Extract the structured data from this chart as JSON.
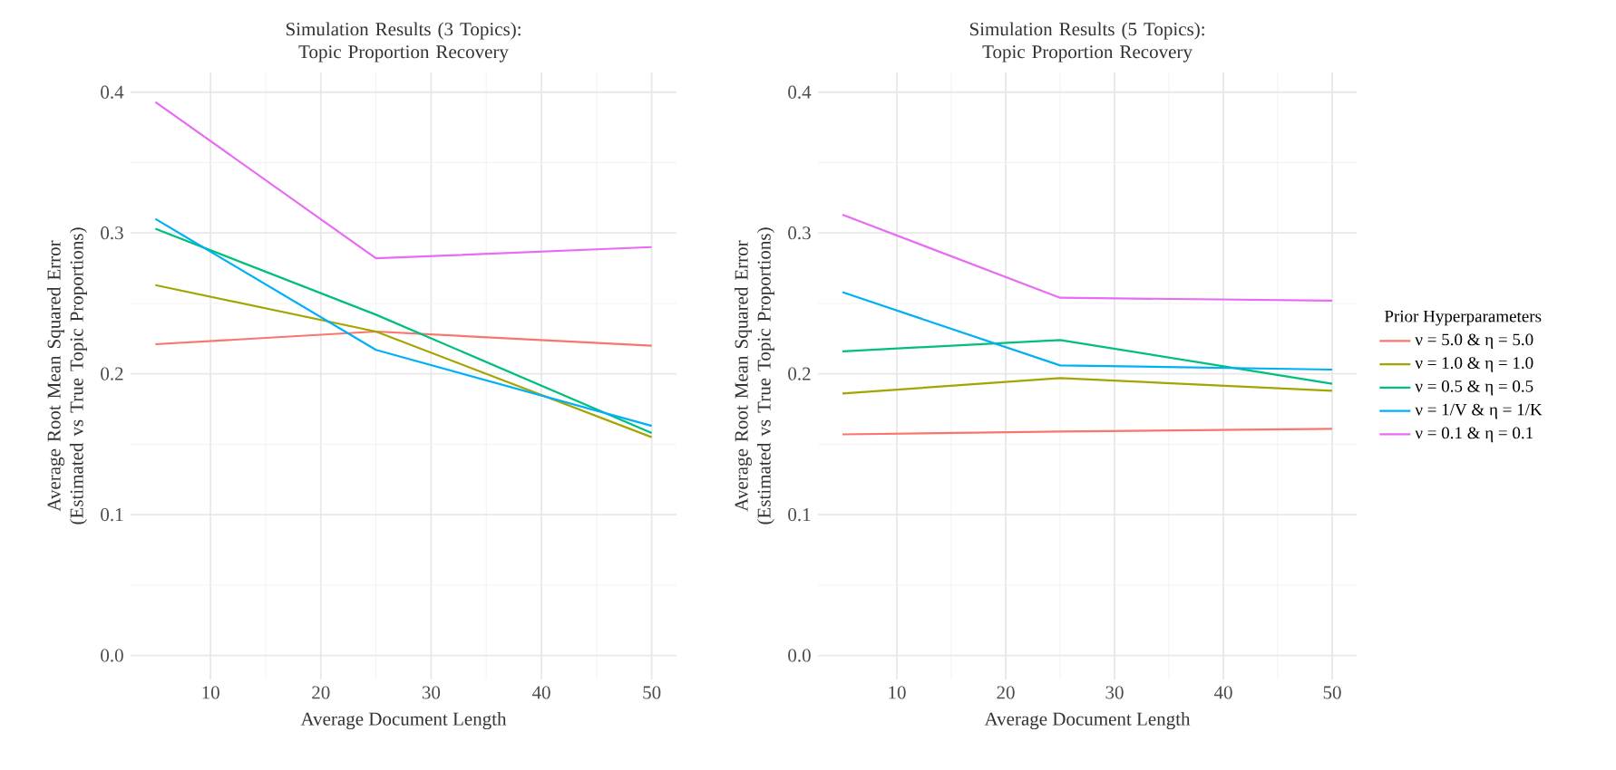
{
  "chart_data": [
    {
      "type": "line",
      "title": "Simulation Results (3 Topics): Topic Proportion Recovery",
      "xlabel": "Average Document Length",
      "ylabel": "Average Root Mean Squared Error (Estimated vs True Topic Proportions)",
      "x": [
        5,
        25,
        50
      ],
      "xlim": [
        2.75,
        52.25
      ],
      "ylim": [
        -0.017,
        0.414
      ],
      "xticks": [
        10,
        20,
        30,
        40,
        50
      ],
      "yticks": [
        {
          "value": 0,
          "label": "0.0"
        },
        0.1,
        0.2,
        0.3,
        0.4
      ],
      "grid": true,
      "series": [
        {
          "color": "#f8766d",
          "values": [
            0.221,
            0.23,
            0.22
          ]
        },
        {
          "color": "#a3a500",
          "values": [
            0.263,
            0.23,
            0.155
          ]
        },
        {
          "color": "#00bf7d",
          "values": [
            0.303,
            0.242,
            0.158
          ]
        },
        {
          "color": "#00b0f6",
          "values": [
            0.31,
            0.217,
            0.163
          ]
        },
        {
          "color": "#e76bf3",
          "values": [
            0.393,
            0.282,
            0.29
          ]
        }
      ]
    },
    {
      "type": "line",
      "title": "Simulation Results (5 Topics): Topic Proportion Recovery",
      "xlabel": "Average Document Length",
      "ylabel": "Average Root Mean Squared Error (Estimated vs True Topic Proportions)",
      "x": [
        5,
        25,
        50
      ],
      "xlim": [
        2.75,
        52.25
      ],
      "ylim": [
        -0.017,
        0.414
      ],
      "xticks": [
        10,
        20,
        30,
        40,
        50
      ],
      "yticks": [
        {
          "value": 0,
          "label": "0.0"
        },
        0.1,
        0.2,
        0.3,
        0.4
      ],
      "grid": true,
      "legend": "right",
      "legend_title": "Prior Hyperparameters",
      "series": [
        {
          "name": "ν = 5.0 & η = 5.0",
          "color": "#f8766d",
          "values": [
            0.157,
            0.159,
            0.161
          ]
        },
        {
          "name": "ν = 1.0 & η = 1.0",
          "color": "#a3a500",
          "values": [
            0.186,
            0.197,
            0.188
          ]
        },
        {
          "name": "ν = 0.5 & η = 0.5",
          "color": "#00bf7d",
          "values": [
            0.216,
            0.224,
            0.193
          ]
        },
        {
          "name": "ν = 1/V & η = 1/K",
          "color": "#00b0f6",
          "values": [
            0.258,
            0.206,
            0.203
          ]
        },
        {
          "name": "ν = 0.1 & η = 0.1",
          "color": "#e76bf3",
          "values": [
            0.313,
            0.254,
            0.252
          ]
        }
      ]
    }
  ]
}
